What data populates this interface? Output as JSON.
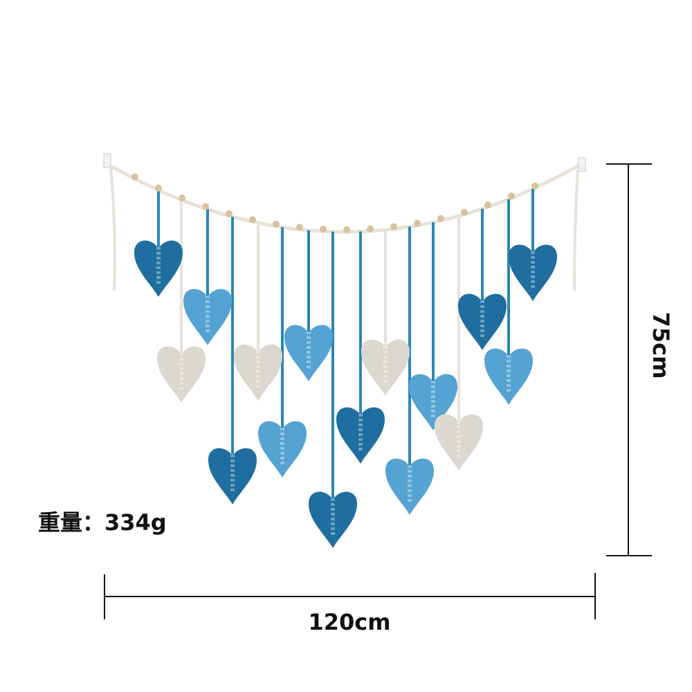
{
  "product": {
    "weight_label": "重量：334g",
    "width_label": "120cm",
    "height_label": "75cm"
  },
  "colors": {
    "dark_blue": "#1f6e9f",
    "light_blue": "#55a3d3",
    "cream": "#dcd8d0",
    "rope": "#e8e2d8",
    "bead": "#d9c29e",
    "dimension_line": "#111111"
  },
  "leaf_colors": [
    "dark_blue",
    "light_blue",
    "cream",
    "cream",
    "dark_blue",
    "light_blue",
    "light_blue",
    "dark_blue",
    "dark_blue",
    "cream",
    "light_blue",
    "light_blue",
    "cream",
    "dark_blue",
    "light_blue",
    "dark_blue"
  ]
}
